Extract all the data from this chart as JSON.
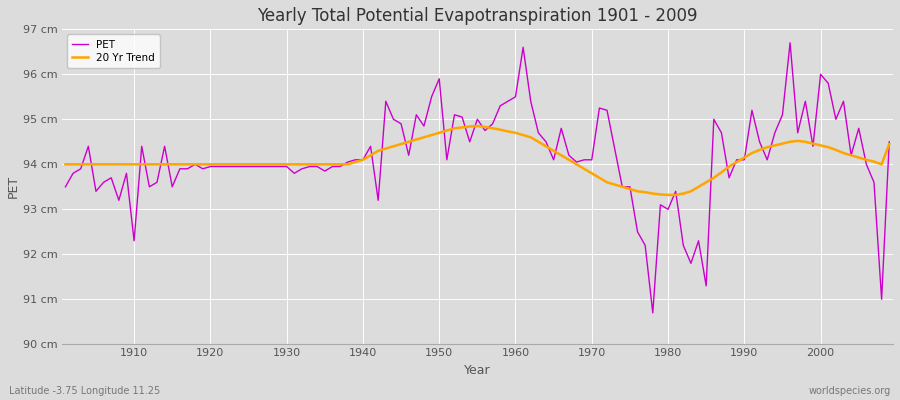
{
  "title": "Yearly Total Potential Evapotranspiration 1901 - 2009",
  "xlabel": "Year",
  "ylabel": "PET",
  "subtitle_left": "Latitude -3.75 Longitude 11.25",
  "subtitle_right": "worldspecies.org",
  "pet_color": "#cc00cc",
  "trend_color": "#ffa500",
  "background_color": "#dcdcdc",
  "grid_color": "#ffffff",
  "ylim": [
    90,
    97
  ],
  "ytick_labels": [
    "90 cm",
    "91 cm",
    "92 cm",
    "93 cm",
    "94 cm",
    "95 cm",
    "96 cm",
    "97 cm"
  ],
  "ytick_values": [
    90,
    91,
    92,
    93,
    94,
    95,
    96,
    97
  ],
  "years": [
    1901,
    1902,
    1903,
    1904,
    1905,
    1906,
    1907,
    1908,
    1909,
    1910,
    1911,
    1912,
    1913,
    1914,
    1915,
    1916,
    1917,
    1918,
    1919,
    1920,
    1921,
    1922,
    1923,
    1924,
    1925,
    1926,
    1927,
    1928,
    1929,
    1930,
    1931,
    1932,
    1933,
    1934,
    1935,
    1936,
    1937,
    1938,
    1939,
    1940,
    1941,
    1942,
    1943,
    1944,
    1945,
    1946,
    1947,
    1948,
    1949,
    1950,
    1951,
    1952,
    1953,
    1954,
    1955,
    1956,
    1957,
    1958,
    1959,
    1960,
    1961,
    1962,
    1963,
    1964,
    1965,
    1966,
    1967,
    1968,
    1969,
    1970,
    1971,
    1972,
    1973,
    1974,
    1975,
    1976,
    1977,
    1978,
    1979,
    1980,
    1981,
    1982,
    1983,
    1984,
    1985,
    1986,
    1987,
    1988,
    1989,
    1990,
    1991,
    1992,
    1993,
    1994,
    1995,
    1996,
    1997,
    1998,
    1999,
    2000,
    2001,
    2002,
    2003,
    2004,
    2005,
    2006,
    2007,
    2008,
    2009
  ],
  "pet_values": [
    93.5,
    93.8,
    93.9,
    94.4,
    93.4,
    93.6,
    93.7,
    93.2,
    93.8,
    92.3,
    94.4,
    93.5,
    93.6,
    94.4,
    93.5,
    93.9,
    93.9,
    94.0,
    93.9,
    93.95,
    93.95,
    93.95,
    93.95,
    93.95,
    93.95,
    93.95,
    93.95,
    93.95,
    93.95,
    93.95,
    93.8,
    93.9,
    93.95,
    93.95,
    93.85,
    93.95,
    93.95,
    94.05,
    94.1,
    94.1,
    94.4,
    93.2,
    95.4,
    95.0,
    94.9,
    94.2,
    95.1,
    94.85,
    95.5,
    95.9,
    94.1,
    95.1,
    95.05,
    94.5,
    95.0,
    94.75,
    94.9,
    95.3,
    95.4,
    95.5,
    96.6,
    95.4,
    94.7,
    94.5,
    94.1,
    94.8,
    94.2,
    94.05,
    94.1,
    94.1,
    95.25,
    95.2,
    94.35,
    93.5,
    93.5,
    92.5,
    92.2,
    90.7,
    93.1,
    93.0,
    93.4,
    92.2,
    91.8,
    92.3,
    91.3,
    95.0,
    94.7,
    93.7,
    94.1,
    94.1,
    95.2,
    94.5,
    94.1,
    94.7,
    95.1,
    96.7,
    94.7,
    95.4,
    94.4,
    96.0,
    95.8,
    95.0,
    95.4,
    94.2,
    94.8,
    94.0,
    93.6,
    91.0,
    94.5
  ],
  "trend_values": [
    94.0,
    94.0,
    94.0,
    94.0,
    94.0,
    94.0,
    94.0,
    94.0,
    94.0,
    94.0,
    94.0,
    94.0,
    94.0,
    94.0,
    94.0,
    94.0,
    94.0,
    94.0,
    94.0,
    94.0,
    94.0,
    94.0,
    94.0,
    94.0,
    94.0,
    94.0,
    94.0,
    94.0,
    94.0,
    94.0,
    94.0,
    94.0,
    94.0,
    94.0,
    94.0,
    94.0,
    94.0,
    94.0,
    94.05,
    94.1,
    94.2,
    94.3,
    94.35,
    94.4,
    94.45,
    94.5,
    94.55,
    94.6,
    94.65,
    94.7,
    94.75,
    94.8,
    94.82,
    94.84,
    94.85,
    94.83,
    94.8,
    94.77,
    94.73,
    94.7,
    94.65,
    94.6,
    94.5,
    94.4,
    94.3,
    94.2,
    94.1,
    94.0,
    93.9,
    93.8,
    93.7,
    93.6,
    93.55,
    93.5,
    93.45,
    93.4,
    93.38,
    93.35,
    93.33,
    93.32,
    93.32,
    93.35,
    93.4,
    93.5,
    93.6,
    93.7,
    93.82,
    93.95,
    94.05,
    94.15,
    94.25,
    94.32,
    94.38,
    94.42,
    94.46,
    94.5,
    94.52,
    94.5,
    94.46,
    94.42,
    94.38,
    94.32,
    94.25,
    94.2,
    94.15,
    94.1,
    94.06,
    94.0,
    94.45
  ]
}
